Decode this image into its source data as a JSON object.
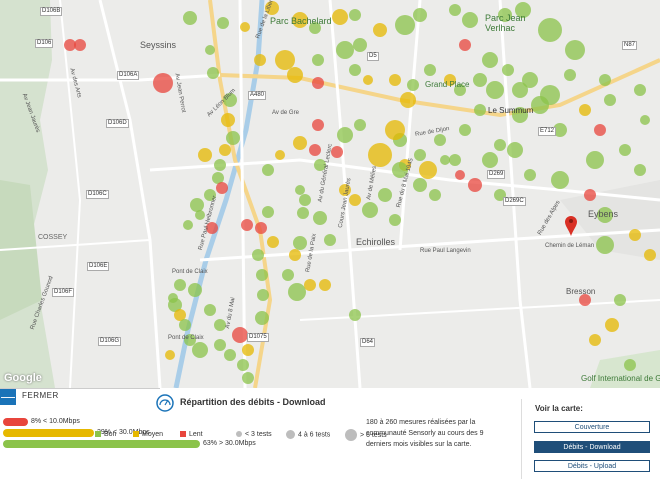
{
  "map": {
    "attribution": "Google",
    "place_labels": [
      {
        "id": "parc-bachelard",
        "text": "Parc Bachelard"
      },
      {
        "id": "parc-jean-verlhac",
        "text": "Parc Jean Verlhac"
      },
      {
        "id": "seyssins",
        "text": "Seyssins"
      },
      {
        "id": "grand-place",
        "text": "Grand Place"
      },
      {
        "id": "le-summum",
        "text": "Le Summum"
      },
      {
        "id": "echirolles",
        "text": "Echirolles"
      },
      {
        "id": "cossey",
        "text": "COSSEY"
      },
      {
        "id": "eybens",
        "text": "Eybens"
      },
      {
        "id": "bresson",
        "text": "Bresson"
      },
      {
        "id": "golf",
        "text": "Golf International de Grenoble"
      }
    ],
    "road_labels": [
      "D106B",
      "D106",
      "D106A",
      "D106D",
      "D106C",
      "D106E",
      "D106F",
      "D106G",
      "A480",
      "N87",
      "D5",
      "D269",
      "D269C",
      "D1075",
      "D64",
      "E712",
      "Rue de la Liberté",
      "Av Léon Blum",
      "Av de Gre",
      "Av Jean Perrot",
      "Rue Paul Helbronner",
      "Av du Général Leclerc",
      "Rue de la Paix",
      "Av de Mélies",
      "Chemin de Léman",
      "Rue de Dijon",
      "Rue des Alpes",
      "Av Jean Jaurès",
      "Rue du 8 Mai 1945",
      "Cours Jean Jaurès",
      "Av des Arts",
      "Rue Paul Langevin",
      "Pont de Claix",
      "Rue Charles Gounod",
      "Av du 8 Mai"
    ]
  },
  "panel": {
    "close_label": "FERMER",
    "close_symbol": "—",
    "title": "Répartition des débits - Download",
    "bars": [
      {
        "label": "8% < 10.0Mbps",
        "color": "#e8453c"
      },
      {
        "label": "29% < 30.0Mbps",
        "color": "#e6b800"
      },
      {
        "label": "63% > 30.0Mbps",
        "color": "#8bc34a"
      }
    ],
    "legend": {
      "bon": "Bon",
      "moyen": "Moyen",
      "lent": "Lent",
      "size_small": "< 3 tests",
      "size_medium": "4 à 6 tests",
      "size_large": "> 6 tests"
    },
    "info_text": "180 à 260 mesures réalisées par la communauté Sensorly au cours des 9 derniers mois visibles sur la carte.",
    "side": {
      "title": "Voir la carte:",
      "buttons": [
        {
          "label": "Couverture",
          "active": false
        },
        {
          "label": "Débits - Download",
          "active": true
        },
        {
          "label": "Débits - Upload",
          "active": false
        }
      ]
    }
  },
  "colors": {
    "good": "#8bc34a",
    "medium": "#e6b800",
    "slow": "#e8453c",
    "accent": "#1a73b8",
    "active_button": "#1f4e79"
  }
}
